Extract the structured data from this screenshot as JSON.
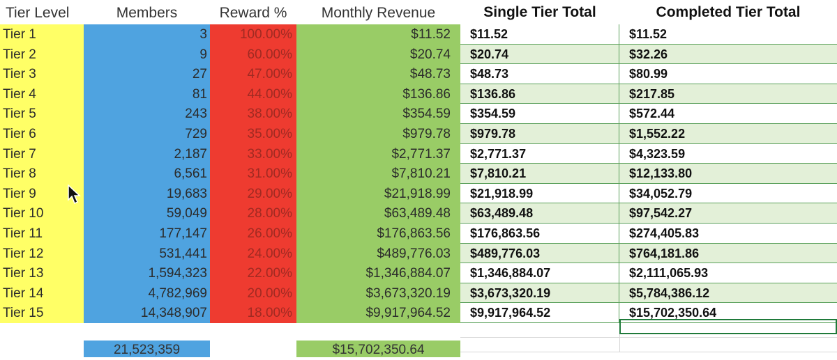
{
  "left_table": {
    "headers": {
      "tier": "Tier Level",
      "members": "Members",
      "reward": "Reward %",
      "revenue": "Monthly Revenue"
    },
    "rows": [
      {
        "tier": "Tier 1",
        "members": "3",
        "reward": "100.00%",
        "revenue": "$11.52"
      },
      {
        "tier": "Tier 2",
        "members": "9",
        "reward": "60.00%",
        "revenue": "$20.74"
      },
      {
        "tier": "Tier 3",
        "members": "27",
        "reward": "47.00%",
        "revenue": "$48.73"
      },
      {
        "tier": "Tier 4",
        "members": "81",
        "reward": "44.00%",
        "revenue": "$136.86"
      },
      {
        "tier": "Tier 5",
        "members": "243",
        "reward": "38.00%",
        "revenue": "$354.59"
      },
      {
        "tier": "Tier 6",
        "members": "729",
        "reward": "35.00%",
        "revenue": "$979.78"
      },
      {
        "tier": "Tier 7",
        "members": "2,187",
        "reward": "33.00%",
        "revenue": "$2,771.37"
      },
      {
        "tier": "Tier 8",
        "members": "6,561",
        "reward": "31.00%",
        "revenue": "$7,810.21"
      },
      {
        "tier": "Tier 9",
        "members": "19,683",
        "reward": "29.00%",
        "revenue": "$21,918.99"
      },
      {
        "tier": "Tier 10",
        "members": "59,049",
        "reward": "28.00%",
        "revenue": "$63,489.48"
      },
      {
        "tier": "Tier 11",
        "members": "177,147",
        "reward": "26.00%",
        "revenue": "$176,863.56"
      },
      {
        "tier": "Tier 12",
        "members": "531,441",
        "reward": "24.00%",
        "revenue": "$489,776.03"
      },
      {
        "tier": "Tier 13",
        "members": "1,594,323",
        "reward": "22.00%",
        "revenue": "$1,346,884.07"
      },
      {
        "tier": "Tier 14",
        "members": "4,782,969",
        "reward": "20.00%",
        "revenue": "$3,673,320.19"
      },
      {
        "tier": "Tier 15",
        "members": "14,348,907",
        "reward": "18.00%",
        "revenue": "$9,917,964.52"
      }
    ],
    "totals": {
      "members": "21,523,359",
      "revenue": "$15,702,350.64"
    },
    "colors": {
      "tier": "#ffff66",
      "members": "#4fa3e0",
      "reward": "#ee3b30",
      "revenue": "#99cc66"
    }
  },
  "right_table": {
    "headers": {
      "single": "Single Tier Total",
      "completed": "Completed Tier Total"
    },
    "rows": [
      {
        "single": "$11.52",
        "completed": "$11.52"
      },
      {
        "single": "$20.74",
        "completed": "$32.26"
      },
      {
        "single": "$48.73",
        "completed": "$80.99"
      },
      {
        "single": "$136.86",
        "completed": "$217.85"
      },
      {
        "single": "$354.59",
        "completed": "$572.44"
      },
      {
        "single": "$979.78",
        "completed": "$1,552.22"
      },
      {
        "single": "$2,771.37",
        "completed": "$4,323.59"
      },
      {
        "single": "$7,810.21",
        "completed": "$12,133.80"
      },
      {
        "single": "$21,918.99",
        "completed": "$34,052.79"
      },
      {
        "single": "$63,489.48",
        "completed": "$97,542.27"
      },
      {
        "single": "$176,863.56",
        "completed": "$274,405.83"
      },
      {
        "single": "$489,776.03",
        "completed": "$764,181.86"
      },
      {
        "single": "$1,346,884.07",
        "completed": "$2,111,065.93"
      },
      {
        "single": "$3,673,320.19",
        "completed": "$5,784,386.12"
      },
      {
        "single": "$9,917,964.52",
        "completed": "$15,702,350.64"
      }
    ],
    "colors": {
      "band": "#e3f0d8",
      "border": "#5aa05a",
      "selection": "#1f7a3a"
    }
  },
  "cursor": {
    "icon": "mouse-pointer-icon"
  }
}
